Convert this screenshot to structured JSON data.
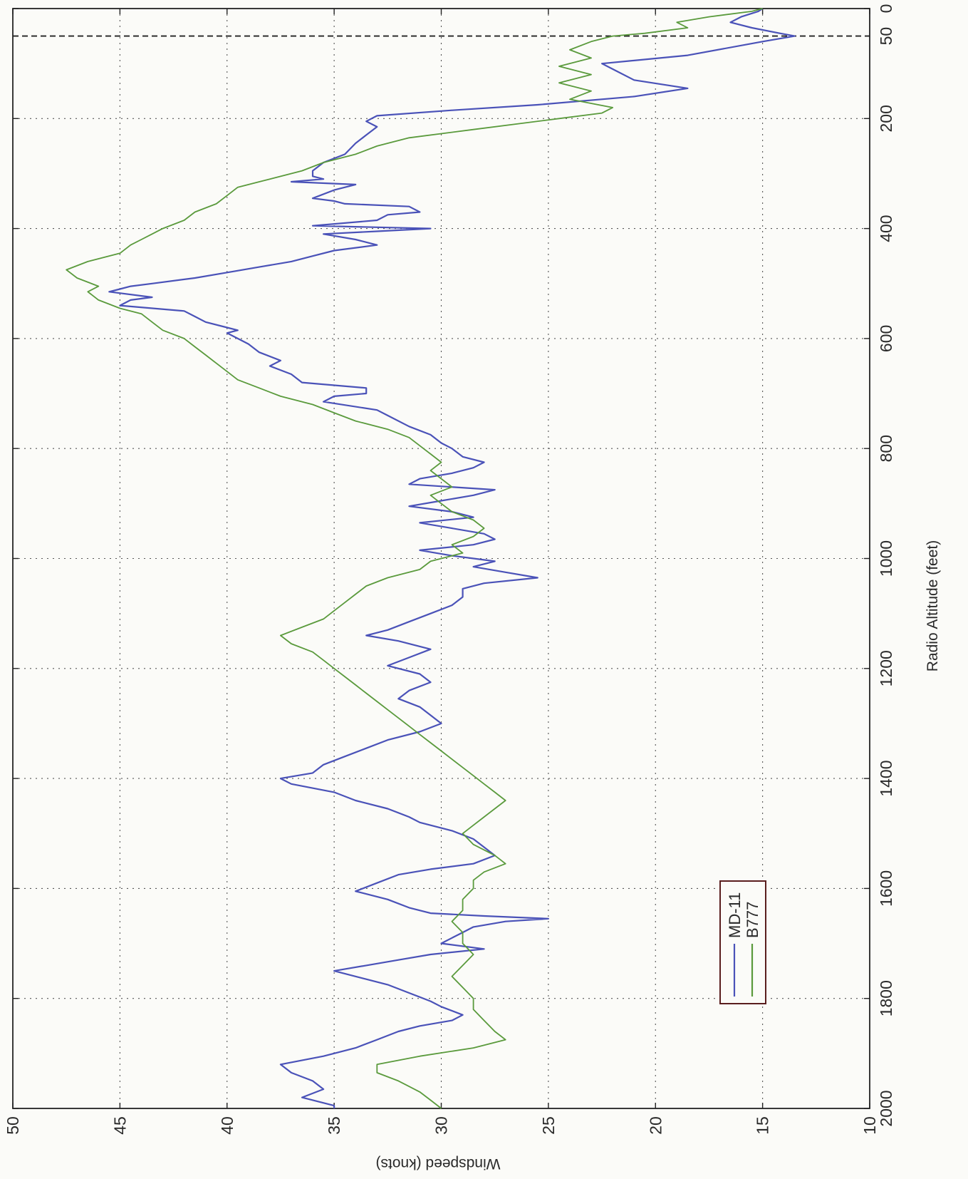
{
  "chart_data": {
    "type": "line",
    "title": "",
    "xlabel": "Radio Altitude (feet)",
    "ylabel": "Windspeed (knots)",
    "xlim": [
      2000,
      0
    ],
    "ylim": [
      10,
      50
    ],
    "x_ticks": [
      2000,
      1800,
      1600,
      1400,
      1200,
      1000,
      800,
      600,
      400,
      200,
      50,
      0
    ],
    "y_ticks": [
      10,
      15,
      20,
      25,
      30,
      35,
      40,
      45,
      50
    ],
    "grid": true,
    "orientation": "rotated 90 degrees",
    "reference_line": {
      "x": 50,
      "style": "dashed"
    },
    "legend": {
      "placement": "lower-left",
      "entries": [
        "MD-11",
        "B777"
      ]
    },
    "series": [
      {
        "name": "MD-11",
        "color": "#4a52b8",
        "points": [
          [
            0,
            15.0
          ],
          [
            5,
            15.2
          ],
          [
            15,
            16.0
          ],
          [
            25,
            16.5
          ],
          [
            35,
            15.5
          ],
          [
            45,
            14.2
          ],
          [
            50,
            13.5
          ],
          [
            60,
            15.0
          ],
          [
            85,
            18.5
          ],
          [
            100,
            22.5
          ],
          [
            110,
            22.0
          ],
          [
            130,
            21.0
          ],
          [
            145,
            18.5
          ],
          [
            160,
            21.0
          ],
          [
            175,
            25.5
          ],
          [
            185,
            29.5
          ],
          [
            195,
            33.0
          ],
          [
            205,
            33.5
          ],
          [
            215,
            33.0
          ],
          [
            230,
            33.5
          ],
          [
            245,
            34.0
          ],
          [
            265,
            34.5
          ],
          [
            280,
            35.5
          ],
          [
            295,
            36.0
          ],
          [
            305,
            36.0
          ],
          [
            310,
            35.5
          ],
          [
            315,
            37.0
          ],
          [
            320,
            34.0
          ],
          [
            330,
            35.0
          ],
          [
            345,
            36.0
          ],
          [
            350,
            35.0
          ],
          [
            355,
            34.5
          ],
          [
            360,
            31.5
          ],
          [
            370,
            31.0
          ],
          [
            375,
            32.5
          ],
          [
            385,
            33.0
          ],
          [
            395,
            36.0
          ],
          [
            400,
            30.5
          ],
          [
            405,
            33.0
          ],
          [
            410,
            35.5
          ],
          [
            420,
            34.0
          ],
          [
            430,
            33.0
          ],
          [
            440,
            35.0
          ],
          [
            450,
            36.0
          ],
          [
            460,
            37.0
          ],
          [
            470,
            38.5
          ],
          [
            480,
            40.0
          ],
          [
            490,
            41.5
          ],
          [
            500,
            43.5
          ],
          [
            505,
            44.5
          ],
          [
            510,
            45.0
          ],
          [
            515,
            45.5
          ],
          [
            525,
            43.5
          ],
          [
            530,
            44.5
          ],
          [
            540,
            45.0
          ],
          [
            550,
            42.0
          ],
          [
            560,
            41.5
          ],
          [
            570,
            41.0
          ],
          [
            580,
            40.0
          ],
          [
            585,
            39.5
          ],
          [
            590,
            40.0
          ],
          [
            600,
            39.5
          ],
          [
            610,
            39.0
          ],
          [
            625,
            38.5
          ],
          [
            640,
            37.5
          ],
          [
            650,
            38.0
          ],
          [
            665,
            37.0
          ],
          [
            680,
            36.5
          ],
          [
            690,
            33.5
          ],
          [
            700,
            33.5
          ],
          [
            705,
            35.0
          ],
          [
            715,
            35.5
          ],
          [
            730,
            33.0
          ],
          [
            740,
            32.5
          ],
          [
            760,
            31.5
          ],
          [
            775,
            30.5
          ],
          [
            790,
            30.0
          ],
          [
            800,
            29.5
          ],
          [
            815,
            29.0
          ],
          [
            825,
            28.0
          ],
          [
            835,
            28.5
          ],
          [
            845,
            29.5
          ],
          [
            855,
            31.0
          ],
          [
            865,
            31.5
          ],
          [
            875,
            27.5
          ],
          [
            885,
            28.5
          ],
          [
            895,
            30.0
          ],
          [
            905,
            31.5
          ],
          [
            915,
            29.5
          ],
          [
            925,
            28.5
          ],
          [
            935,
            31.0
          ],
          [
            945,
            29.5
          ],
          [
            955,
            28.0
          ],
          [
            965,
            27.5
          ],
          [
            975,
            28.5
          ],
          [
            985,
            31.0
          ],
          [
            995,
            29.5
          ],
          [
            1005,
            27.5
          ],
          [
            1015,
            28.5
          ],
          [
            1025,
            27.0
          ],
          [
            1035,
            25.5
          ],
          [
            1045,
            28.0
          ],
          [
            1055,
            29.0
          ],
          [
            1070,
            29.0
          ],
          [
            1085,
            29.5
          ],
          [
            1100,
            30.5
          ],
          [
            1115,
            31.5
          ],
          [
            1130,
            32.5
          ],
          [
            1140,
            33.5
          ],
          [
            1150,
            32.0
          ],
          [
            1165,
            30.5
          ],
          [
            1180,
            31.5
          ],
          [
            1195,
            32.5
          ],
          [
            1210,
            31.0
          ],
          [
            1225,
            30.5
          ],
          [
            1240,
            31.5
          ],
          [
            1255,
            32.0
          ],
          [
            1270,
            31.0
          ],
          [
            1285,
            30.5
          ],
          [
            1300,
            30.0
          ],
          [
            1315,
            31.0
          ],
          [
            1330,
            32.5
          ],
          [
            1345,
            33.5
          ],
          [
            1360,
            34.5
          ],
          [
            1375,
            35.5
          ],
          [
            1390,
            36.0
          ],
          [
            1400,
            37.5
          ],
          [
            1410,
            37.0
          ],
          [
            1425,
            35.0
          ],
          [
            1440,
            34.0
          ],
          [
            1455,
            32.5
          ],
          [
            1470,
            31.5
          ],
          [
            1480,
            31.0
          ],
          [
            1495,
            29.5
          ],
          [
            1510,
            28.5
          ],
          [
            1525,
            28.0
          ],
          [
            1540,
            27.5
          ],
          [
            1555,
            28.5
          ],
          [
            1565,
            30.5
          ],
          [
            1575,
            32.0
          ],
          [
            1590,
            33.0
          ],
          [
            1605,
            34.0
          ],
          [
            1620,
            32.5
          ],
          [
            1635,
            31.5
          ],
          [
            1645,
            30.5
          ],
          [
            1650,
            28.0
          ],
          [
            1655,
            25.0
          ],
          [
            1660,
            27.0
          ],
          [
            1670,
            28.5
          ],
          [
            1680,
            29.0
          ],
          [
            1690,
            29.5
          ],
          [
            1700,
            30.0
          ],
          [
            1710,
            28.0
          ],
          [
            1720,
            30.5
          ],
          [
            1730,
            32.0
          ],
          [
            1740,
            33.5
          ],
          [
            1750,
            35.0
          ],
          [
            1765,
            33.5
          ],
          [
            1775,
            32.5
          ],
          [
            1790,
            31.5
          ],
          [
            1805,
            30.5
          ],
          [
            1815,
            30.0
          ],
          [
            1830,
            29.0
          ],
          [
            1840,
            29.5
          ],
          [
            1850,
            31.0
          ],
          [
            1860,
            32.0
          ],
          [
            1875,
            33.0
          ],
          [
            1890,
            34.0
          ],
          [
            1905,
            35.5
          ],
          [
            1920,
            37.5
          ],
          [
            1935,
            37.0
          ],
          [
            1950,
            36.0
          ],
          [
            1965,
            35.5
          ],
          [
            1980,
            36.5
          ],
          [
            1995,
            35.0
          ],
          [
            2000,
            35.0
          ]
        ]
      },
      {
        "name": "B777",
        "color": "#5a9a3c",
        "points": [
          [
            0,
            15.0
          ],
          [
            5,
            15.5
          ],
          [
            15,
            17.5
          ],
          [
            25,
            19.0
          ],
          [
            35,
            18.5
          ],
          [
            45,
            20.5
          ],
          [
            50,
            22.0
          ],
          [
            60,
            23.0
          ],
          [
            75,
            24.0
          ],
          [
            90,
            23.0
          ],
          [
            105,
            24.5
          ],
          [
            120,
            23.0
          ],
          [
            135,
            24.5
          ],
          [
            150,
            23.0
          ],
          [
            165,
            24.0
          ],
          [
            180,
            22.0
          ],
          [
            190,
            22.5
          ],
          [
            200,
            24.5
          ],
          [
            210,
            26.5
          ],
          [
            220,
            28.5
          ],
          [
            235,
            31.5
          ],
          [
            250,
            33.0
          ],
          [
            265,
            34.0
          ],
          [
            280,
            35.5
          ],
          [
            295,
            36.5
          ],
          [
            310,
            38.0
          ],
          [
            325,
            39.5
          ],
          [
            340,
            40.0
          ],
          [
            355,
            40.5
          ],
          [
            370,
            41.5
          ],
          [
            385,
            42.0
          ],
          [
            400,
            43.0
          ],
          [
            410,
            43.5
          ],
          [
            420,
            44.0
          ],
          [
            430,
            44.5
          ],
          [
            445,
            45.0
          ],
          [
            460,
            46.5
          ],
          [
            475,
            47.5
          ],
          [
            490,
            47.0
          ],
          [
            505,
            46.0
          ],
          [
            515,
            46.5
          ],
          [
            530,
            46.0
          ],
          [
            545,
            45.0
          ],
          [
            555,
            44.0
          ],
          [
            570,
            43.5
          ],
          [
            585,
            43.0
          ],
          [
            600,
            42.0
          ],
          [
            615,
            41.5
          ],
          [
            630,
            41.0
          ],
          [
            645,
            40.5
          ],
          [
            660,
            40.0
          ],
          [
            675,
            39.5
          ],
          [
            690,
            38.5
          ],
          [
            705,
            37.5
          ],
          [
            720,
            36.0
          ],
          [
            735,
            35.0
          ],
          [
            750,
            34.0
          ],
          [
            765,
            32.5
          ],
          [
            780,
            31.5
          ],
          [
            795,
            31.0
          ],
          [
            810,
            30.5
          ],
          [
            825,
            30.0
          ],
          [
            840,
            30.5
          ],
          [
            855,
            30.0
          ],
          [
            870,
            29.5
          ],
          [
            885,
            30.5
          ],
          [
            900,
            30.0
          ],
          [
            915,
            29.5
          ],
          [
            930,
            28.5
          ],
          [
            945,
            28.0
          ],
          [
            960,
            28.5
          ],
          [
            975,
            29.5
          ],
          [
            990,
            29.0
          ],
          [
            1005,
            30.5
          ],
          [
            1020,
            31.0
          ],
          [
            1035,
            32.5
          ],
          [
            1050,
            33.5
          ],
          [
            1065,
            34.0
          ],
          [
            1080,
            34.5
          ],
          [
            1095,
            35.0
          ],
          [
            1110,
            35.5
          ],
          [
            1125,
            36.5
          ],
          [
            1140,
            37.5
          ],
          [
            1155,
            37.0
          ],
          [
            1170,
            36.0
          ],
          [
            1185,
            35.5
          ],
          [
            1200,
            35.0
          ],
          [
            1215,
            34.5
          ],
          [
            1230,
            34.0
          ],
          [
            1245,
            33.5
          ],
          [
            1260,
            33.0
          ],
          [
            1275,
            32.5
          ],
          [
            1290,
            32.0
          ],
          [
            1305,
            31.5
          ],
          [
            1320,
            31.0
          ],
          [
            1335,
            30.5
          ],
          [
            1350,
            30.0
          ],
          [
            1365,
            29.5
          ],
          [
            1380,
            29.0
          ],
          [
            1395,
            28.5
          ],
          [
            1410,
            28.0
          ],
          [
            1425,
            27.5
          ],
          [
            1440,
            27.0
          ],
          [
            1455,
            27.5
          ],
          [
            1470,
            28.0
          ],
          [
            1485,
            28.5
          ],
          [
            1500,
            29.0
          ],
          [
            1520,
            28.5
          ],
          [
            1540,
            27.5
          ],
          [
            1555,
            27.0
          ],
          [
            1570,
            28.0
          ],
          [
            1585,
            28.5
          ],
          [
            1600,
            28.5
          ],
          [
            1620,
            29.0
          ],
          [
            1640,
            29.0
          ],
          [
            1660,
            29.5
          ],
          [
            1680,
            29.0
          ],
          [
            1700,
            29.0
          ],
          [
            1720,
            28.5
          ],
          [
            1740,
            29.0
          ],
          [
            1760,
            29.5
          ],
          [
            1780,
            29.0
          ],
          [
            1800,
            28.5
          ],
          [
            1820,
            28.5
          ],
          [
            1840,
            28.0
          ],
          [
            1860,
            27.5
          ],
          [
            1875,
            27.0
          ],
          [
            1890,
            28.5
          ],
          [
            1905,
            31.0
          ],
          [
            1920,
            33.0
          ],
          [
            1935,
            33.0
          ],
          [
            1950,
            32.0
          ],
          [
            1970,
            31.0
          ],
          [
            1985,
            30.5
          ],
          [
            2000,
            30.0
          ]
        ]
      }
    ]
  }
}
